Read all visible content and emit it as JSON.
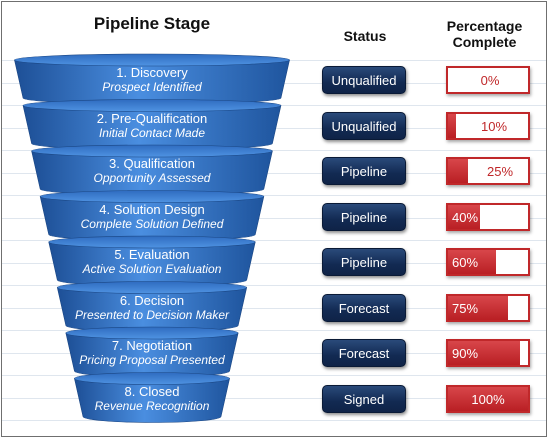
{
  "headers": {
    "pipeline_stage": "Pipeline Stage",
    "status": "Status",
    "percentage_complete_line1": "Percentage",
    "percentage_complete_line2": "Complete"
  },
  "colors": {
    "funnel_blue": "#3b7fd0",
    "status_navy": "#122a52",
    "progress_red": "#c0282a"
  },
  "stages": [
    {
      "name": "1. Discovery",
      "sub": "Prospect Identified",
      "status": "Unqualified",
      "percent": "0%",
      "fraction": 0.0
    },
    {
      "name": "2. Pre-Qualification",
      "sub": "Initial Contact Made",
      "status": "Unqualified",
      "percent": "10%",
      "fraction": 0.1
    },
    {
      "name": "3. Qualification",
      "sub": "Opportunity Assessed",
      "status": "Pipeline",
      "percent": "25%",
      "fraction": 0.25
    },
    {
      "name": "4. Solution Design",
      "sub": "Complete Solution Defined",
      "status": "Pipeline",
      "percent": "40%",
      "fraction": 0.4
    },
    {
      "name": "5. Evaluation",
      "sub": "Active Solution Evaluation",
      "status": "Pipeline",
      "percent": "60%",
      "fraction": 0.6
    },
    {
      "name": "6. Decision",
      "sub": "Presented to Decision Maker",
      "status": "Forecast",
      "percent": "75%",
      "fraction": 0.75
    },
    {
      "name": "7. Negotiation",
      "sub": "Pricing Proposal Presented",
      "status": "Forecast",
      "percent": "90%",
      "fraction": 0.9
    },
    {
      "name": "8. Closed",
      "sub": "Revenue Recognition",
      "status": "Signed",
      "percent": "100%",
      "fraction": 1.0
    }
  ]
}
